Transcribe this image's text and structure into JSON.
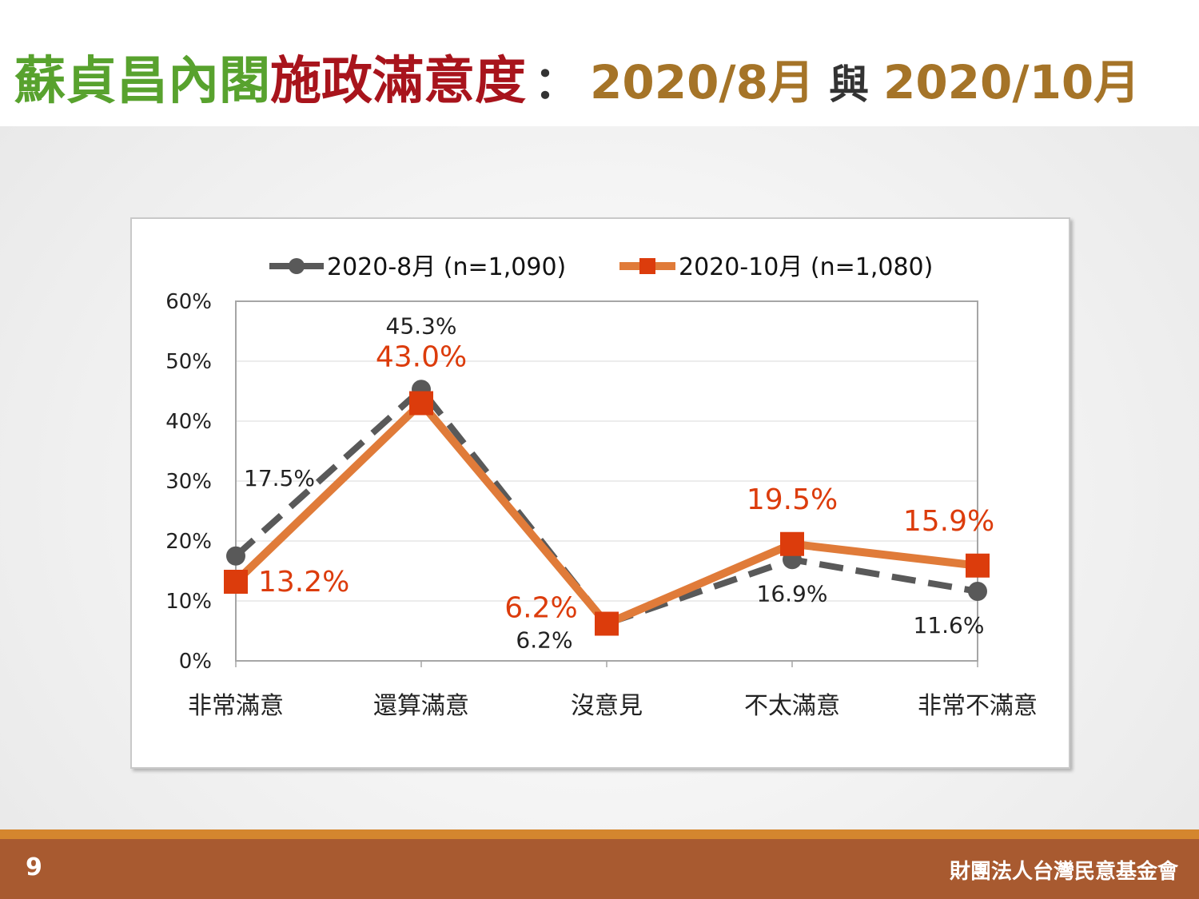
{
  "title": {
    "part1": "蘇貞昌內閣",
    "part2": "施政滿意度",
    "colon": "：",
    "part3": "2020/8月",
    "conj": "與",
    "part4": "2020/10月",
    "colors": {
      "green": "#58a22e",
      "red": "#a8141c",
      "brown": "#a57428"
    }
  },
  "footer": {
    "page_number": "9",
    "organization": "財團法人台灣民意基金會"
  },
  "chart_data": {
    "type": "line",
    "categories": [
      "非常滿意",
      "還算滿意",
      "沒意見",
      "不太滿意",
      "非常不滿意"
    ],
    "ylim": [
      0,
      60
    ],
    "yticks": [
      "0%",
      "10%",
      "20%",
      "30%",
      "40%",
      "50%",
      "60%"
    ],
    "grid": true,
    "legend_position": "top",
    "series": [
      {
        "name": "2020-8月  (n=1,090)",
        "values": [
          17.5,
          45.3,
          6.2,
          16.9,
          11.6
        ],
        "labels": [
          "17.5%",
          "45.3%",
          "6.2%",
          "16.9%",
          "11.6%"
        ],
        "color": "#595959",
        "label_color": "#222222",
        "line_style": "dashed",
        "marker": "circle"
      },
      {
        "name": "2020-10月  (n=1,080)",
        "values": [
          13.2,
          43.0,
          6.2,
          19.5,
          15.9
        ],
        "labels": [
          "13.2%",
          "43.0%",
          "6.2%",
          "19.5%",
          "15.9%"
        ],
        "color": "#e07b39",
        "marker_color": "#dc3c0c",
        "label_color": "#dc3c0c",
        "line_style": "solid",
        "marker": "square"
      }
    ]
  }
}
